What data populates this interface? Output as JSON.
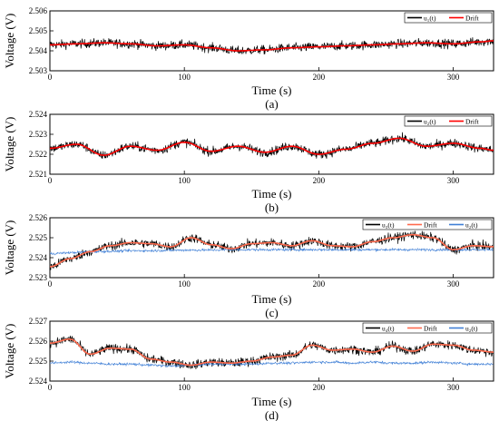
{
  "chart_data": [
    {
      "type": "line",
      "panel_label": "(a)",
      "xlabel": "Time (s)",
      "ylabel": "Voltage (V)",
      "xlim": [
        0,
        330
      ],
      "ylim": [
        2.503,
        2.506
      ],
      "xticks": [
        0,
        100,
        200,
        300
      ],
      "yticks": [
        2.503,
        2.504,
        2.505,
        2.506
      ],
      "legend_position": "top-right",
      "legend": [
        "u₁(t)",
        "Drift"
      ],
      "colors": [
        "#000000",
        "#ff0000"
      ],
      "noise_amp": [
        0.00022
      ],
      "drift_x": [
        0,
        20,
        40,
        60,
        80,
        100,
        120,
        140,
        160,
        180,
        200,
        220,
        240,
        260,
        280,
        300,
        320,
        330
      ],
      "series": [
        {
          "name": "u₁(t)",
          "noise_of": "Drift",
          "values": [
            2.5043,
            2.50435,
            2.5044,
            2.50435,
            2.50425,
            2.5043,
            2.50415,
            2.504,
            2.50405,
            2.50415,
            2.5042,
            2.50425,
            2.5043,
            2.50435,
            2.5044,
            2.50435,
            2.50445,
            2.5045
          ]
        },
        {
          "name": "Drift",
          "values": [
            2.5043,
            2.50435,
            2.5044,
            2.50435,
            2.50425,
            2.5043,
            2.50415,
            2.504,
            2.50405,
            2.50415,
            2.5042,
            2.50425,
            2.5043,
            2.50435,
            2.5044,
            2.50435,
            2.50445,
            2.5045
          ]
        }
      ]
    },
    {
      "type": "line",
      "panel_label": "(b)",
      "xlabel": "Time (s)",
      "ylabel": "Voltage (V)",
      "xlim": [
        0,
        330
      ],
      "ylim": [
        2.521,
        2.524
      ],
      "xticks": [
        0,
        100,
        200,
        300
      ],
      "yticks": [
        2.521,
        2.522,
        2.523,
        2.524
      ],
      "legend_position": "top-right",
      "legend": [
        "u₂(t)",
        "Drift"
      ],
      "colors": [
        "#000000",
        "#ff0000"
      ],
      "noise_amp": [
        0.00022
      ],
      "drift_x": [
        0,
        20,
        40,
        60,
        80,
        100,
        120,
        140,
        160,
        180,
        200,
        220,
        240,
        260,
        280,
        300,
        320,
        330
      ],
      "series": [
        {
          "name": "u₂(t)",
          "noise_of": "Drift",
          "values": [
            2.5223,
            2.5225,
            2.52195,
            2.5224,
            2.5222,
            2.5226,
            2.52215,
            2.5224,
            2.5221,
            2.5224,
            2.522,
            2.52225,
            2.52255,
            2.5228,
            2.5224,
            2.52255,
            2.5223,
            2.5222
          ]
        },
        {
          "name": "Drift",
          "values": [
            2.5223,
            2.5225,
            2.52195,
            2.5224,
            2.5222,
            2.5226,
            2.52215,
            2.5224,
            2.5221,
            2.5224,
            2.522,
            2.52225,
            2.52255,
            2.5228,
            2.5224,
            2.52255,
            2.5223,
            2.5222
          ]
        }
      ]
    },
    {
      "type": "line",
      "panel_label": "(c)",
      "xlabel": "Time (s)",
      "ylabel": "Voltage (V)",
      "xlim": [
        0,
        330
      ],
      "ylim": [
        2.523,
        2.526
      ],
      "xticks": [
        0,
        100,
        200,
        300
      ],
      "yticks": [
        2.523,
        2.524,
        2.525,
        2.526
      ],
      "legend_position": "top-right",
      "legend": [
        "u₃(t)",
        "Drift",
        "u₂(t)"
      ],
      "colors": [
        "#000000",
        "#ff6a4d",
        "#3f7fd6"
      ],
      "noise_amp": [
        0.00022,
        6e-05
      ],
      "drift_x": [
        0,
        15,
        30,
        45,
        60,
        75,
        90,
        105,
        120,
        135,
        150,
        165,
        180,
        195,
        210,
        225,
        240,
        255,
        270,
        285,
        300,
        315,
        330
      ],
      "series": [
        {
          "name": "u₃(t)",
          "noise_of": "Drift",
          "values": [
            2.52355,
            2.52395,
            2.5243,
            2.5246,
            2.52475,
            2.5247,
            2.52455,
            2.525,
            2.52465,
            2.52445,
            2.5247,
            2.52475,
            2.5246,
            2.52485,
            2.5246,
            2.52455,
            2.5248,
            2.525,
            2.52515,
            2.525,
            2.5244,
            2.5246,
            2.52455
          ]
        },
        {
          "name": "Drift",
          "values": [
            2.52355,
            2.52395,
            2.5243,
            2.5246,
            2.52475,
            2.5247,
            2.52455,
            2.525,
            2.52465,
            2.52445,
            2.5247,
            2.52475,
            2.5246,
            2.52485,
            2.5246,
            2.52455,
            2.5248,
            2.525,
            2.52515,
            2.525,
            2.5244,
            2.5246,
            2.52455
          ]
        },
        {
          "name": "u₂(t)",
          "values": [
            2.5242,
            2.52425,
            2.5243,
            2.52432,
            2.52435,
            2.52435,
            2.52437,
            2.52438,
            2.52438,
            2.5244,
            2.5244,
            2.5244,
            2.5244,
            2.5244,
            2.5244,
            2.5244,
            2.5244,
            2.5244,
            2.5244,
            2.5244,
            2.5244,
            2.5244,
            2.5244
          ]
        }
      ]
    },
    {
      "type": "line",
      "panel_label": "(d)",
      "xlabel": "Time (s)",
      "ylabel": "Voltage (V)",
      "xlim": [
        0,
        330
      ],
      "ylim": [
        2.524,
        2.527
      ],
      "xticks": [
        0,
        100,
        200,
        300
      ],
      "yticks": [
        2.524,
        2.525,
        2.526,
        2.527
      ],
      "legend_position": "top-right",
      "legend": [
        "u₄(t)",
        "Drift",
        "u₂(t)"
      ],
      "colors": [
        "#000000",
        "#ff6a4d",
        "#3f7fd6"
      ],
      "noise_amp": [
        0.00022,
        6e-05
      ],
      "drift_x": [
        0,
        15,
        30,
        45,
        60,
        75,
        90,
        105,
        120,
        135,
        150,
        165,
        180,
        195,
        210,
        225,
        240,
        255,
        270,
        285,
        300,
        315,
        330
      ],
      "series": [
        {
          "name": "u₄(t)",
          "noise_of": "Drift",
          "values": [
            2.5259,
            2.5261,
            2.52535,
            2.52565,
            2.5256,
            2.5251,
            2.52495,
            2.5248,
            2.52495,
            2.5249,
            2.525,
            2.5252,
            2.5253,
            2.5258,
            2.52555,
            2.5256,
            2.52545,
            2.52575,
            2.5255,
            2.52585,
            2.5258,
            2.52555,
            2.52545
          ]
        },
        {
          "name": "Drift",
          "values": [
            2.5259,
            2.5261,
            2.52535,
            2.52565,
            2.5256,
            2.5251,
            2.52495,
            2.5248,
            2.52495,
            2.5249,
            2.525,
            2.5252,
            2.5253,
            2.5258,
            2.52555,
            2.5256,
            2.52545,
            2.52575,
            2.5255,
            2.52585,
            2.5258,
            2.52555,
            2.52545
          ]
        },
        {
          "name": "u₂(t)",
          "values": [
            2.5249,
            2.52495,
            2.5249,
            2.52485,
            2.52485,
            2.5248,
            2.52475,
            2.5248,
            2.52485,
            2.52485,
            2.52485,
            2.5249,
            2.5249,
            2.52495,
            2.52495,
            2.5249,
            2.52495,
            2.5249,
            2.5249,
            2.52495,
            2.5249,
            2.52485,
            2.52485
          ]
        }
      ]
    }
  ]
}
